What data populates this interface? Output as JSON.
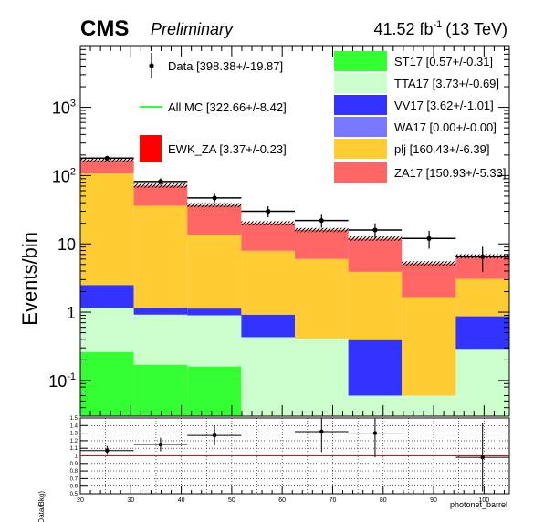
{
  "header": {
    "experiment": "CMS",
    "status": "Preliminary",
    "lumi_value": "41.52 fb",
    "lumi_exp": "-1",
    "energy": "(13 TeV)"
  },
  "chart_data": {
    "type": "bar",
    "stacked": true,
    "ylabel": "Events/bin",
    "ratio_ylabel": "(Data/Bkg)",
    "xlabel": "photonet_barrel",
    "yscale": "log",
    "ylim": [
      0.03,
      8000
    ],
    "xlim": [
      20,
      105
    ],
    "ratio_ylim": [
      0.5,
      1.5
    ],
    "x_ticks": [
      20,
      30,
      40,
      50,
      60,
      70,
      80,
      90,
      100
    ],
    "y_ticks": [
      {
        "value": 0.1,
        "label": "10",
        "exp": "-1"
      },
      {
        "value": 1,
        "label": "1",
        "exp": ""
      },
      {
        "value": 10,
        "label": "10",
        "exp": ""
      },
      {
        "value": 100,
        "label": "10",
        "exp": "2"
      },
      {
        "value": 1000,
        "label": "10",
        "exp": "3"
      }
    ],
    "ratio_ticks": [
      "0.5",
      "0.6",
      "0.7",
      "0.8",
      "0.9",
      "1",
      "1.1",
      "1.2",
      "1.3",
      "1.4",
      "1.5"
    ],
    "bin_edges": [
      20,
      30.6,
      41.2,
      51.9,
      62.5,
      73.1,
      83.7,
      94.4,
      105
    ],
    "series": [
      {
        "name": "ST17",
        "label": "ST17 [0.57+/-0.31]",
        "color": "#33ff33",
        "values": [
          0.26,
          0.17,
          0.16,
          0.03,
          0.03,
          0.03,
          0.03,
          0.03
        ]
      },
      {
        "name": "TTA17",
        "label": "TTA17 [3.73+/-0.69]",
        "color": "#ccffcc",
        "values": [
          0.89,
          0.75,
          0.74,
          0.4,
          0.38,
          0.03,
          0.03,
          0.26
        ]
      },
      {
        "name": "VV17",
        "label": "VV17 [3.62+/-1.01]",
        "color": "#3333ff",
        "values": [
          1.35,
          0.23,
          0.23,
          0.49,
          0,
          0.33,
          0,
          0.58
        ]
      },
      {
        "name": "WA17",
        "label": "WA17 [0.00+/-0.00]",
        "color": "#7777ff",
        "values": [
          0,
          0,
          0,
          0,
          0,
          0,
          0,
          0
        ]
      },
      {
        "name": "plj",
        "label": "plj [160.43+/-6.39]",
        "color": "#ffcc33",
        "values": [
          105,
          35,
          12.5,
          7,
          5.6,
          3.5,
          1.6,
          2.2
        ]
      },
      {
        "name": "ZA17",
        "label": "ZA17 [150.93+/-5.33]",
        "color": "#ff6666",
        "values": [
          60,
          35,
          23,
          12,
          10,
          8,
          3.5,
          3.5
        ]
      }
    ],
    "mc_total": [
      168,
      71.5,
      37,
      20,
      16,
      12,
      5.2,
      6.6
    ],
    "data": {
      "x": [
        25.3,
        35.9,
        46.6,
        57.2,
        67.8,
        78.4,
        89.1,
        99.7
      ],
      "y": [
        180,
        82,
        47,
        30,
        22,
        16,
        12,
        6.5
      ],
      "yerr": [
        13,
        9,
        7,
        5.5,
        4.7,
        4,
        3.5,
        2.6
      ],
      "label": "Data [398.38+/-19.87]"
    },
    "all_mc_label": "All MC [322.66+/-8.42]",
    "ewk_label": "EWK_ZA [3.37+/-0.23]",
    "ratio": {
      "x": [
        25.3,
        35.9,
        46.6,
        57.2,
        67.8,
        78.4,
        89.1,
        99.7
      ],
      "y": [
        1.07,
        1.15,
        1.27,
        null,
        1.32,
        1.3,
        null,
        0.98
      ],
      "yerr": [
        0.06,
        0.09,
        0.13,
        null,
        0.27,
        0.32,
        null,
        0.45
      ]
    }
  }
}
